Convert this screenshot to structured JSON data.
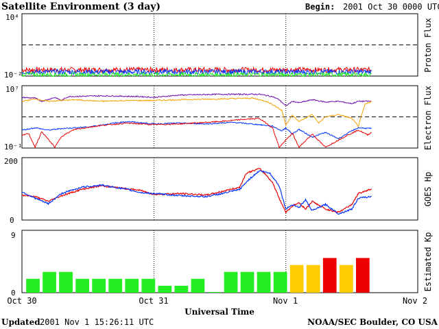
{
  "header": {
    "title": "Satellite Environment (3 day)",
    "begin_label": "Begin:",
    "begin_value": "2001 Oct 30 0000 UTC"
  },
  "footer": {
    "updated_label": "Updated",
    "updated_value": "2001 Nov  1 15:26:11 UTC",
    "credit": "NOAA/SEC Boulder, CO USA"
  },
  "colors": {
    "red": "#ee0000",
    "blue": "#0033ff",
    "green": "#22ee22",
    "purple": "#6a0dad",
    "orange": "#f5a000",
    "kp_green": "#22ee22",
    "kp_yellow": "#ffcc00",
    "kp_red": "#ee0000"
  },
  "chart_data": [
    {
      "id": "proton",
      "type": "line",
      "ylabel": "Proton Flux",
      "log_scale": true,
      "ylim_exponent": [
        -2,
        4
      ],
      "tick_labels": [
        "10⁴",
        "10⁻²"
      ],
      "threshold_exponent": 1,
      "x_ticks": [
        "Oct 30",
        "Oct 31",
        "Nov 1",
        "Nov 2"
      ],
      "x_range_days": [
        0,
        3
      ],
      "data_end_day": 2.65,
      "series": [
        {
          "color_key": "red",
          "level_exponent": -1.4,
          "noise": 0.25
        },
        {
          "color_key": "blue",
          "level_exponent": -1.6,
          "noise": 0.25
        },
        {
          "color_key": "green",
          "level_exponent": -1.85,
          "noise": 0.2
        }
      ]
    },
    {
      "id": "electron",
      "type": "line",
      "ylabel": "Electron Flux",
      "log_scale": true,
      "ylim_exponent": [
        -1,
        7
      ],
      "tick_labels": [
        "10⁷",
        "10⁻¹"
      ],
      "threshold_exponent": 3,
      "x_range_days": [
        0,
        3
      ],
      "series": [
        {
          "color_key": "purple",
          "points": [
            [
              0,
              5.5
            ],
            [
              0.1,
              5.4
            ],
            [
              0.15,
              5.0
            ],
            [
              0.25,
              5.5
            ],
            [
              0.3,
              5.1
            ],
            [
              0.35,
              5.6
            ],
            [
              0.6,
              5.7
            ],
            [
              0.9,
              5.6
            ],
            [
              1.0,
              5.5
            ],
            [
              1.2,
              5.8
            ],
            [
              1.5,
              5.9
            ],
            [
              1.8,
              5.9
            ],
            [
              1.9,
              5.6
            ],
            [
              1.95,
              5.2
            ],
            [
              2.0,
              4.4
            ],
            [
              2.05,
              5.0
            ],
            [
              2.1,
              4.8
            ],
            [
              2.2,
              5.2
            ],
            [
              2.3,
              4.9
            ],
            [
              2.4,
              5.0
            ],
            [
              2.5,
              4.7
            ],
            [
              2.55,
              5.0
            ],
            [
              2.65,
              5.0
            ]
          ]
        },
        {
          "color_key": "orange",
          "points": [
            [
              0,
              5.0
            ],
            [
              0.1,
              5.3
            ],
            [
              0.2,
              5.0
            ],
            [
              0.4,
              5.2
            ],
            [
              0.6,
              5.0
            ],
            [
              0.8,
              5.1
            ],
            [
              1.0,
              5.1
            ],
            [
              1.2,
              5.2
            ],
            [
              1.5,
              5.3
            ],
            [
              1.75,
              5.4
            ],
            [
              1.85,
              5.0
            ],
            [
              1.92,
              4.4
            ],
            [
              1.97,
              3.8
            ],
            [
              2.0,
              2.0
            ],
            [
              2.05,
              3.2
            ],
            [
              2.1,
              2.4
            ],
            [
              2.2,
              3.3
            ],
            [
              2.25,
              2.2
            ],
            [
              2.3,
              3.0
            ],
            [
              2.4,
              3.3
            ],
            [
              2.5,
              2.8
            ],
            [
              2.55,
              1.8
            ],
            [
              2.6,
              4.6
            ],
            [
              2.65,
              5.0
            ]
          ]
        },
        {
          "color_key": "blue",
          "points": [
            [
              0,
              1.3
            ],
            [
              0.1,
              1.6
            ],
            [
              0.2,
              1.3
            ],
            [
              0.3,
              1.5
            ],
            [
              0.5,
              1.7
            ],
            [
              0.7,
              2.2
            ],
            [
              0.8,
              2.4
            ],
            [
              1.0,
              2.1
            ],
            [
              1.2,
              2.2
            ],
            [
              1.4,
              2.1
            ],
            [
              1.6,
              2.3
            ],
            [
              1.8,
              2.0
            ],
            [
              1.9,
              1.8
            ],
            [
              1.97,
              1.2
            ],
            [
              2.0,
              1.6
            ],
            [
              2.05,
              0.8
            ],
            [
              2.1,
              1.4
            ],
            [
              2.2,
              0.4
            ],
            [
              2.3,
              1.0
            ],
            [
              2.4,
              0.2
            ],
            [
              2.5,
              1.2
            ],
            [
              2.55,
              1.6
            ],
            [
              2.65,
              1.5
            ]
          ]
        },
        {
          "color_key": "red",
          "points": [
            [
              0,
              0.6
            ],
            [
              0.05,
              0.9
            ],
            [
              0.1,
              -0.9
            ],
            [
              0.15,
              1.1
            ],
            [
              0.25,
              -0.9
            ],
            [
              0.3,
              0.5
            ],
            [
              0.4,
              1.4
            ],
            [
              0.6,
              1.9
            ],
            [
              0.8,
              2.2
            ],
            [
              1.0,
              2.0
            ],
            [
              1.2,
              2.1
            ],
            [
              1.5,
              2.4
            ],
            [
              1.7,
              2.7
            ],
            [
              1.8,
              2.8
            ],
            [
              1.85,
              2.2
            ],
            [
              1.9,
              1.6
            ],
            [
              1.95,
              -0.9
            ],
            [
              2.05,
              0.9
            ],
            [
              2.1,
              -0.9
            ],
            [
              2.2,
              0.8
            ],
            [
              2.3,
              -0.9
            ],
            [
              2.45,
              0.5
            ],
            [
              2.55,
              1.3
            ],
            [
              2.62,
              0.7
            ],
            [
              2.65,
              1.0
            ]
          ]
        }
      ]
    },
    {
      "id": "hp",
      "type": "line",
      "ylabel": "GOES Hp",
      "ylim": [
        0,
        200
      ],
      "tick_labels": [
        "200",
        "0"
      ],
      "x_range_days": [
        0,
        3
      ],
      "series": [
        {
          "color_key": "red",
          "points": [
            [
              0,
              80
            ],
            [
              0.1,
              75
            ],
            [
              0.2,
              60
            ],
            [
              0.3,
              78
            ],
            [
              0.45,
              98
            ],
            [
              0.6,
              110
            ],
            [
              0.8,
              100
            ],
            [
              0.9,
              95
            ],
            [
              1.0,
              82
            ],
            [
              1.2,
              85
            ],
            [
              1.4,
              80
            ],
            [
              1.55,
              95
            ],
            [
              1.65,
              105
            ],
            [
              1.7,
              150
            ],
            [
              1.8,
              165
            ],
            [
              1.85,
              145
            ],
            [
              1.9,
              120
            ],
            [
              1.95,
              70
            ],
            [
              2.0,
              25
            ],
            [
              2.05,
              45
            ],
            [
              2.1,
              55
            ],
            [
              2.15,
              35
            ],
            [
              2.2,
              60
            ],
            [
              2.3,
              35
            ],
            [
              2.4,
              25
            ],
            [
              2.5,
              50
            ],
            [
              2.55,
              85
            ],
            [
              2.65,
              100
            ]
          ]
        },
        {
          "color_key": "blue",
          "points": [
            [
              0,
              90
            ],
            [
              0.1,
              70
            ],
            [
              0.2,
              52
            ],
            [
              0.3,
              85
            ],
            [
              0.45,
              105
            ],
            [
              0.6,
              112
            ],
            [
              0.8,
              98
            ],
            [
              0.9,
              88
            ],
            [
              1.0,
              85
            ],
            [
              1.2,
              78
            ],
            [
              1.4,
              75
            ],
            [
              1.55,
              88
            ],
            [
              1.65,
              98
            ],
            [
              1.72,
              130
            ],
            [
              1.8,
              158
            ],
            [
              1.88,
              150
            ],
            [
              1.95,
              110
            ],
            [
              2.0,
              35
            ],
            [
              2.05,
              50
            ],
            [
              2.1,
              40
            ],
            [
              2.15,
              65
            ],
            [
              2.2,
              30
            ],
            [
              2.3,
              50
            ],
            [
              2.4,
              20
            ],
            [
              2.5,
              35
            ],
            [
              2.55,
              70
            ],
            [
              2.65,
              75
            ]
          ]
        }
      ]
    },
    {
      "id": "kp",
      "type": "bar",
      "ylabel": "Estimated Kp",
      "ylim": [
        0,
        9
      ],
      "tick_labels": [
        "9",
        "0"
      ],
      "x_ticks": [
        "Oct 30",
        "Oct 31",
        "Nov 1",
        "Nov 2"
      ],
      "xlabel": "Universal Time",
      "values": [
        2,
        3,
        3,
        2,
        2,
        2,
        2,
        2,
        1,
        1,
        2,
        0.1,
        3,
        3,
        3,
        3,
        4,
        4,
        5,
        4,
        5
      ]
    }
  ]
}
